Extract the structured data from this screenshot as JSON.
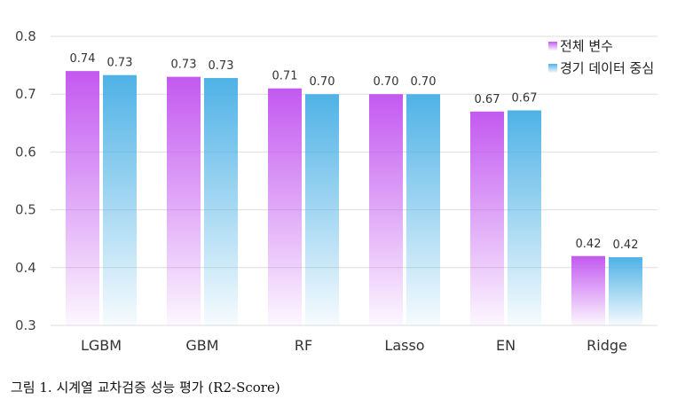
{
  "chart_data": {
    "type": "bar",
    "categories": [
      "LGBM",
      "GBM",
      "RF",
      "Lasso",
      "EN",
      "Ridge"
    ],
    "series": [
      {
        "name": "전체 변수",
        "values": [
          0.74,
          0.73,
          0.71,
          0.7,
          0.67,
          0.42
        ],
        "labels": [
          "0.74",
          "0.73",
          "0.71",
          "0.70",
          "0.67",
          "0.42"
        ],
        "color_top": "#c359f0",
        "color_bottom": "#c359f0"
      },
      {
        "name": "경기 데이터 중심",
        "values": [
          0.733,
          0.728,
          0.7,
          0.7,
          0.672,
          0.418
        ],
        "labels": [
          "0.73",
          "0.73",
          "0.70",
          "0.70",
          "0.67",
          "0.42"
        ],
        "color_top": "#4fb2e6",
        "color_bottom": "#4fb2e6"
      }
    ],
    "ylim": [
      0.3,
      0.8
    ],
    "yticks": [
      "0.3",
      "0.4",
      "0.5",
      "0.6",
      "0.7",
      "0.8"
    ],
    "grid": true,
    "legend_position": "top-right",
    "xlabel": "",
    "ylabel": ""
  },
  "caption": "그림 1. 시계열 교차검증 성능 평가 (R2-Score)"
}
